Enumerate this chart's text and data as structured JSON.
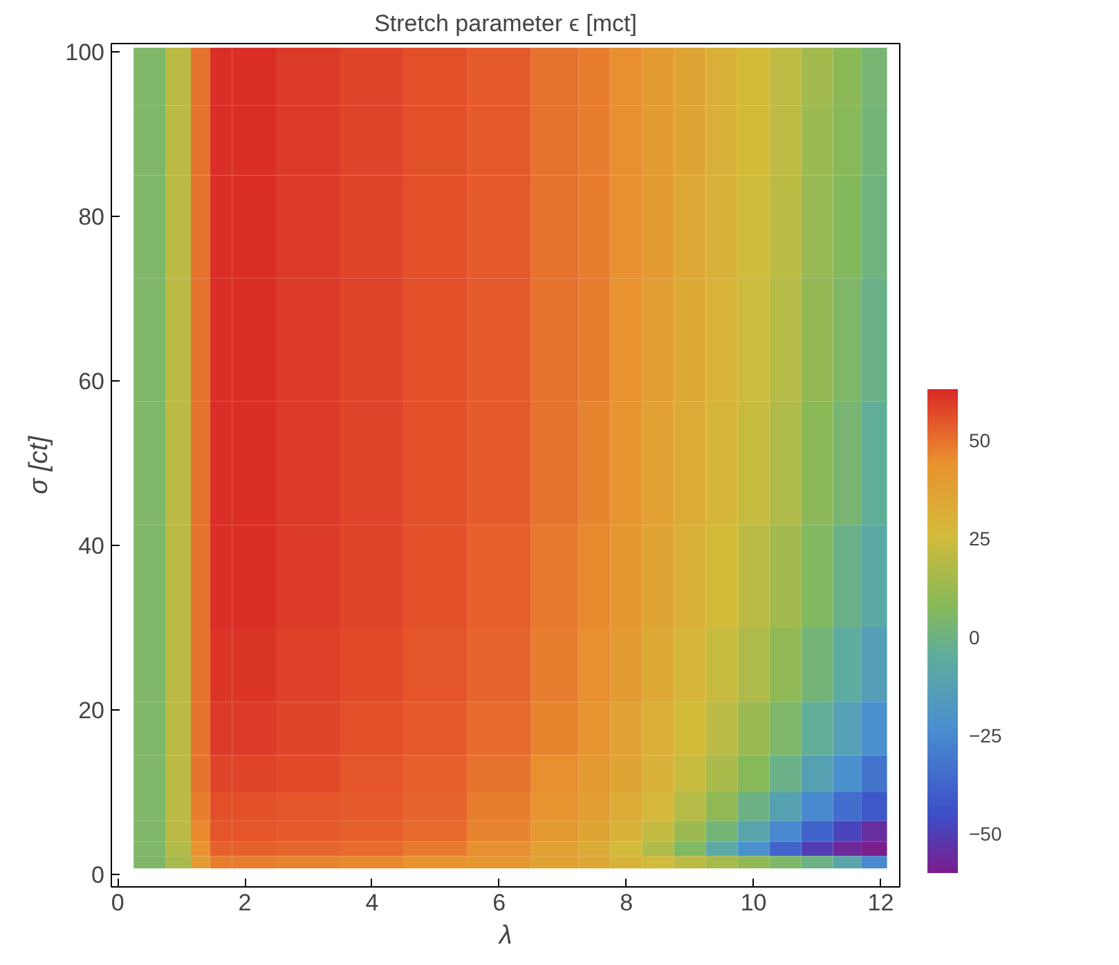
{
  "chart_data": {
    "type": "heatmap",
    "title": "Stretch parameter ϵ [mct]",
    "xlabel": "λ",
    "ylabel": "σ [ct]",
    "x": [
      0.5,
      1.0,
      1.3,
      1.6,
      2,
      3,
      4,
      5,
      6,
      7,
      7.5,
      8,
      8.5,
      9,
      9.5,
      10,
      10.5,
      11,
      11.5,
      11.9
    ],
    "y": [
      97,
      90,
      80,
      65,
      50,
      35,
      25,
      17,
      12,
      8,
      5,
      3,
      1.5
    ],
    "cells": [
      [
        5,
        20,
        50,
        62,
        62,
        60,
        58,
        56,
        54,
        50,
        48,
        45,
        40,
        36,
        31,
        26,
        21,
        14,
        9,
        3
      ],
      [
        5,
        20,
        50,
        62,
        62,
        60,
        58,
        56,
        54,
        50,
        48,
        45,
        40,
        36,
        31,
        26,
        21,
        13,
        8,
        2
      ],
      [
        5,
        20,
        50,
        62,
        62,
        60,
        58,
        56,
        54,
        50,
        48,
        45,
        40,
        35,
        30,
        25,
        20,
        12,
        7,
        1
      ],
      [
        5,
        20,
        50,
        62,
        62,
        60,
        58,
        56,
        54,
        50,
        48,
        44,
        39,
        34,
        29,
        24,
        19,
        11,
        5,
        -1
      ],
      [
        5,
        20,
        50,
        62,
        62,
        60,
        58,
        56,
        54,
        50,
        47,
        43,
        38,
        33,
        28,
        23,
        17,
        9,
        3,
        -4
      ],
      [
        5,
        20,
        50,
        62,
        62,
        60,
        58,
        56,
        53,
        49,
        46,
        42,
        36,
        31,
        26,
        20,
        14,
        6,
        -1,
        -8
      ],
      [
        5,
        20,
        50,
        61,
        61,
        59,
        57,
        55,
        52,
        48,
        45,
        40,
        34,
        28,
        23,
        17,
        10,
        2,
        -6,
        -14
      ],
      [
        5,
        20,
        50,
        60,
        60,
        58,
        56,
        54,
        51,
        47,
        43,
        38,
        32,
        26,
        20,
        13,
        5,
        -4,
        -13,
        -22
      ],
      [
        5,
        20,
        50,
        58,
        58,
        57,
        55,
        53,
        50,
        45,
        41,
        36,
        30,
        23,
        16,
        8,
        -1,
        -12,
        -22,
        -32
      ],
      [
        5,
        20,
        48,
        56,
        56,
        55,
        54,
        52,
        48,
        43,
        39,
        33,
        27,
        19,
        10,
        0,
        -12,
        -25,
        -35,
        -42
      ],
      [
        5,
        20,
        46,
        55,
        55,
        54,
        53,
        51,
        47,
        41,
        36,
        30,
        22,
        13,
        2,
        -10,
        -25,
        -38,
        -48,
        -55
      ],
      [
        5,
        18,
        44,
        53,
        53,
        52,
        51,
        49,
        45,
        38,
        33,
        26,
        17,
        6,
        -8,
        -22,
        -38,
        -50,
        -57,
        -60
      ],
      [
        5,
        15,
        40,
        48,
        48,
        47,
        46,
        44,
        42,
        38,
        35,
        30,
        25,
        20,
        15,
        10,
        5,
        0,
        -10,
        -25
      ]
    ],
    "xlim": [
      -0.1,
      12.3
    ],
    "ylim": [
      -1.5,
      101
    ],
    "xticks": [
      0,
      2,
      4,
      6,
      8,
      10,
      12
    ],
    "yticks": [
      0,
      20,
      40,
      60,
      80,
      100
    ],
    "clim": [
      -60,
      63
    ],
    "cticks": [
      -50,
      -25,
      0,
      25,
      50
    ]
  }
}
